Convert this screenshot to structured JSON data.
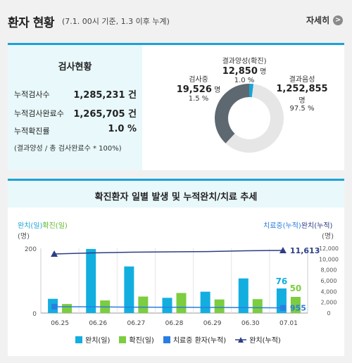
{
  "header": {
    "title": "환자 현황",
    "subtitle": "(7.1. 00시 기준, 1.3 이후 누계)",
    "more_label": "자세히",
    "more_icon": "chevron-right-icon"
  },
  "stats": {
    "title": "검사현황",
    "rows": [
      {
        "label": "누적검사수",
        "value": "1,285,231 건"
      },
      {
        "label": "누적검사완료수",
        "value": "1,265,705 건"
      },
      {
        "label": "누적확진률",
        "value": "1.0 %"
      }
    ],
    "note": "(결과양성 / 총 검사완료수 * 100%)"
  },
  "donut": {
    "positive": {
      "label": "결과양성(확진)",
      "value": "12,850",
      "unit": "명",
      "pct": "1.0 %",
      "fraction": 0.01
    },
    "testing": {
      "label": "검사중",
      "value": "19,526",
      "unit": "명",
      "pct": "1.5 %",
      "fraction": 0.015
    },
    "negative": {
      "label": "결과음성",
      "value": "1,252,855",
      "unit": "명",
      "pct": "97.5 %",
      "fraction": 0.975
    },
    "colors": {
      "positive": "#1aa3d8",
      "testing": "#eeeeee",
      "negative": "#5d6870"
    }
  },
  "trend": {
    "title": "확진환자 일별 발생 및 누적완치/치료 추세",
    "left_axis_title_released": "완치(일)",
    "left_axis_title_confirmed": "확진(일)",
    "left_axis_unit": "(명)",
    "right_axis_title_treating": "치료중(누적)",
    "right_axis_title_released": "완치(누적)",
    "right_axis_unit": "(명)"
  },
  "chart_data": {
    "type": "bar",
    "categories": [
      "06.25",
      "06.26",
      "06.27",
      "06.28",
      "06.29",
      "06.30",
      "07.01"
    ],
    "series": [
      {
        "name": "완치(일)",
        "axis": "left",
        "type": "bar",
        "values": [
          44,
          198,
          144,
          47,
          66,
          107,
          76
        ],
        "color": "#13aee0"
      },
      {
        "name": "확진(일)",
        "axis": "left",
        "type": "bar",
        "values": [
          28,
          39,
          51,
          62,
          42,
          43,
          50
        ],
        "color": "#7ccd3f"
      },
      {
        "name": "치료중 환자(누적)",
        "axis": "right",
        "type": "line",
        "values": [
          1180,
          1150,
          1100,
          1080,
          1050,
          1010,
          955
        ],
        "color": "#2a7de1"
      },
      {
        "name": "완치(누적)",
        "axis": "right",
        "type": "line",
        "values": [
          10950,
          11150,
          11290,
          11340,
          11400,
          11540,
          11613
        ],
        "color": "#2c3e86"
      }
    ],
    "last_labels": {
      "released_daily": "76",
      "confirmed_daily": "50",
      "treating_cum": "955",
      "released_cum": "11,613"
    },
    "ylim_left": [
      0,
      200
    ],
    "yticks_left": [
      "0",
      "200"
    ],
    "ylim_right": [
      0,
      12000
    ],
    "yticks_right": [
      "0",
      "2,000",
      "4,000",
      "6,000",
      "8,000",
      "10,000",
      "12,000"
    ],
    "legend_position": "bottom"
  }
}
